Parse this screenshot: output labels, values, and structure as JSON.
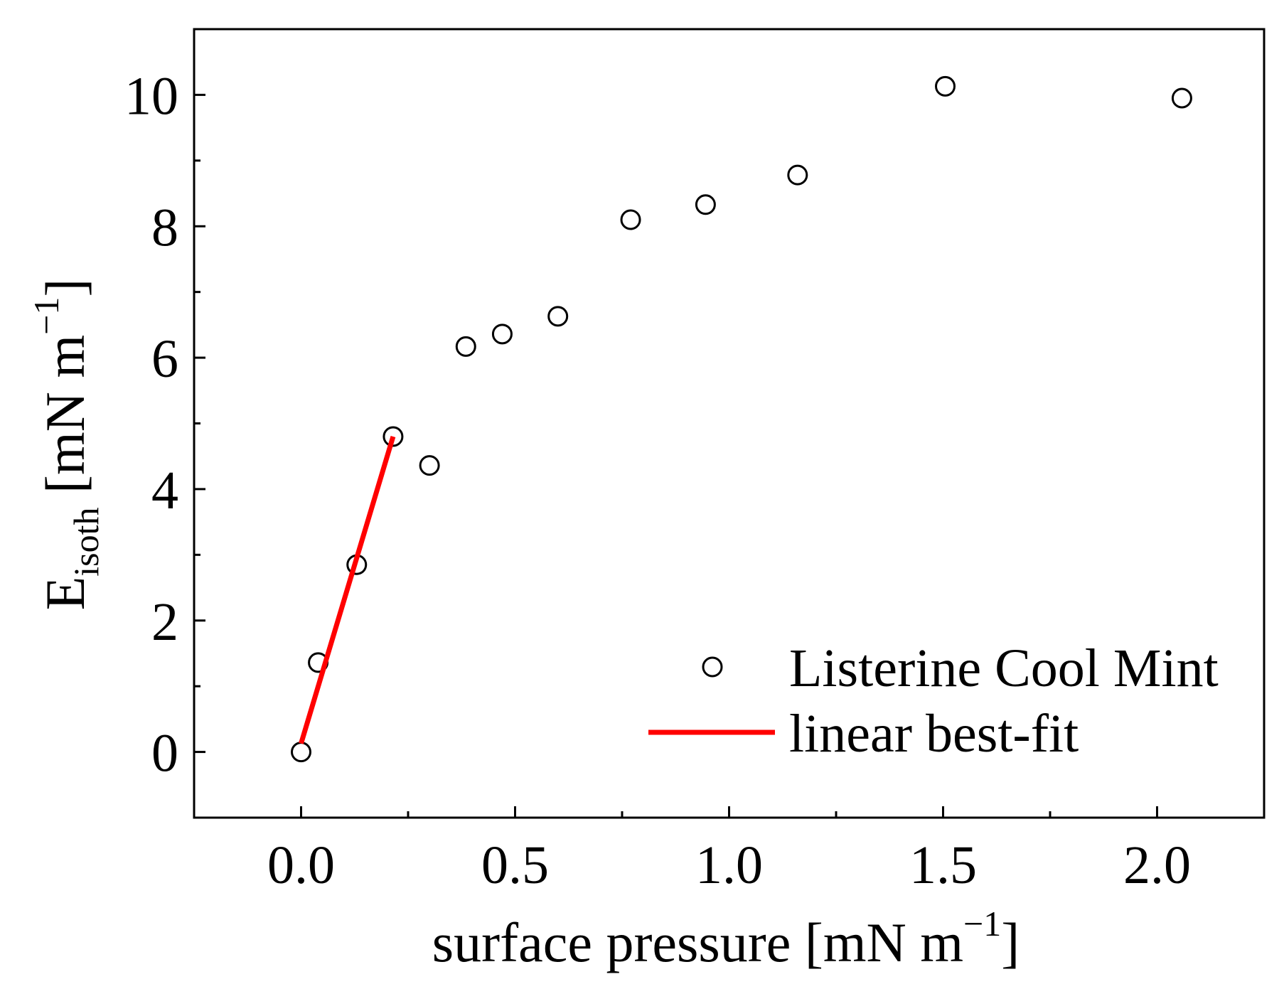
{
  "chart_data": {
    "type": "scatter",
    "title": "",
    "xlabel": "surface pressure [mN m",
    "xlabel_sup": "−1",
    "xlabel_close": "]",
    "ylabel_main": "E",
    "ylabel_sub": "isoth",
    "ylabel_units": " [mN m",
    "ylabel_sup": "−1",
    "ylabel_close": "]",
    "xlim": [
      -0.25,
      2.25
    ],
    "ylim": [
      -1.0,
      11.0
    ],
    "x_ticks": [
      0.0,
      0.5,
      1.0,
      1.5,
      2.0
    ],
    "x_tick_labels": [
      "0.0",
      "0.5",
      "1.0",
      "1.5",
      "2.0"
    ],
    "x_minor_ticks": [
      0.25,
      0.75,
      1.25,
      1.75
    ],
    "y_ticks": [
      0,
      2,
      4,
      6,
      8,
      10
    ],
    "y_tick_labels": [
      "0",
      "2",
      "4",
      "6",
      "8",
      "10"
    ],
    "y_minor_ticks": [
      1,
      3,
      5,
      7,
      9
    ],
    "series": [
      {
        "name": "Listerine Cool Mint",
        "kind": "scatter",
        "marker": "open-circle",
        "color": "#000000",
        "points": [
          {
            "x": 0.0,
            "y": 0.0
          },
          {
            "x": 0.04,
            "y": 1.36
          },
          {
            "x": 0.13,
            "y": 2.85
          },
          {
            "x": 0.215,
            "y": 4.8
          },
          {
            "x": 0.3,
            "y": 4.36
          },
          {
            "x": 0.385,
            "y": 6.17
          },
          {
            "x": 0.47,
            "y": 6.36
          },
          {
            "x": 0.6,
            "y": 6.63
          },
          {
            "x": 0.77,
            "y": 8.1
          },
          {
            "x": 0.945,
            "y": 8.33
          },
          {
            "x": 1.16,
            "y": 8.78
          },
          {
            "x": 1.505,
            "y": 10.13
          },
          {
            "x": 2.058,
            "y": 9.95
          }
        ]
      },
      {
        "name": "linear best-fit",
        "kind": "line",
        "color": "#ff0000",
        "points": [
          {
            "x": 0.0,
            "y": 0.13
          },
          {
            "x": 0.215,
            "y": 4.8
          }
        ]
      }
    ],
    "legend_position": "bottom-right",
    "grid": false
  }
}
